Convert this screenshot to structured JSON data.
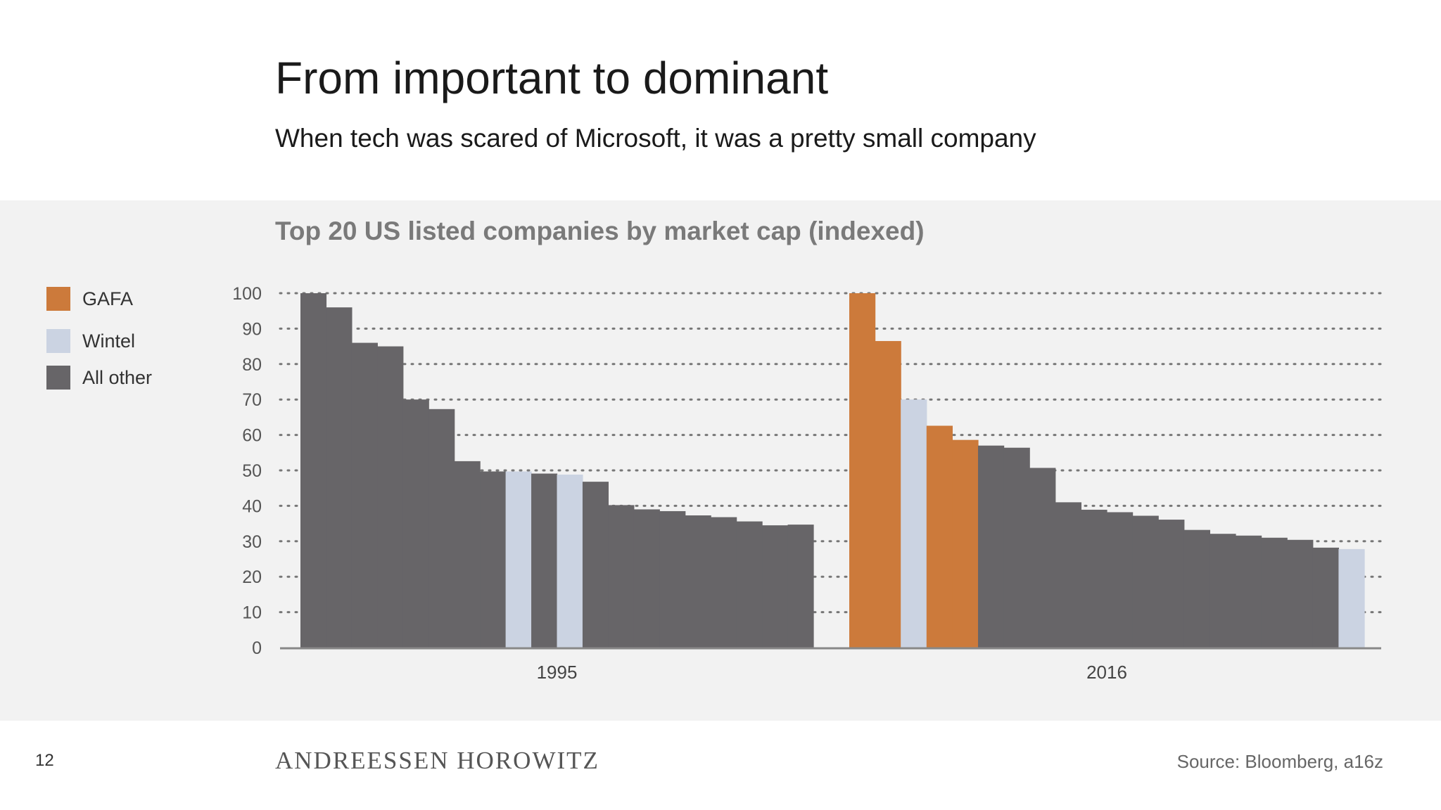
{
  "header": {
    "title": "From important to dominant",
    "subtitle": "When tech was scared of Microsoft, it was a pretty small company"
  },
  "footer": {
    "page_number": "12",
    "logo": "ANDREESSEN HOROWITZ",
    "source": "Source: Bloomberg, a16z"
  },
  "colors": {
    "GAFA": "#cc7a3b",
    "Wintel": "#cbd3e2",
    "All other": "#676568"
  },
  "chart_data": {
    "type": "bar",
    "title": "Top 20 US listed companies by market cap (indexed)",
    "ylim": [
      0,
      100
    ],
    "yticks": [
      0,
      10,
      20,
      30,
      40,
      50,
      60,
      70,
      80,
      90,
      100
    ],
    "grid": true,
    "legend_placement": "left",
    "legend": [
      "GAFA",
      "Wintel",
      "All other"
    ],
    "groups": [
      {
        "label": "1995",
        "values": [
          100,
          96,
          86,
          85,
          70,
          67.3,
          52.6,
          49.7,
          49.7,
          49.1,
          48.8,
          46.8,
          40.2,
          39,
          38.5,
          37.3,
          36.8,
          35.6,
          34.5,
          34.7
        ],
        "categories": [
          "All other",
          "All other",
          "All other",
          "All other",
          "All other",
          "All other",
          "All other",
          "All other",
          "Wintel",
          "All other",
          "Wintel",
          "All other",
          "All other",
          "All other",
          "All other",
          "All other",
          "All other",
          "All other",
          "All other",
          "All other"
        ]
      },
      {
        "label": "2016",
        "values": [
          100,
          86.5,
          70,
          62.6,
          58.6,
          57,
          56.4,
          50.7,
          41,
          38.9,
          38.2,
          37.2,
          36.1,
          33.2,
          32.1,
          31.6,
          31,
          30.4,
          28.2,
          27.8
        ],
        "categories": [
          "GAFA",
          "GAFA",
          "Wintel",
          "GAFA",
          "GAFA",
          "All other",
          "All other",
          "All other",
          "All other",
          "All other",
          "All other",
          "All other",
          "All other",
          "All other",
          "All other",
          "All other",
          "All other",
          "All other",
          "All other",
          "Wintel"
        ]
      }
    ]
  }
}
